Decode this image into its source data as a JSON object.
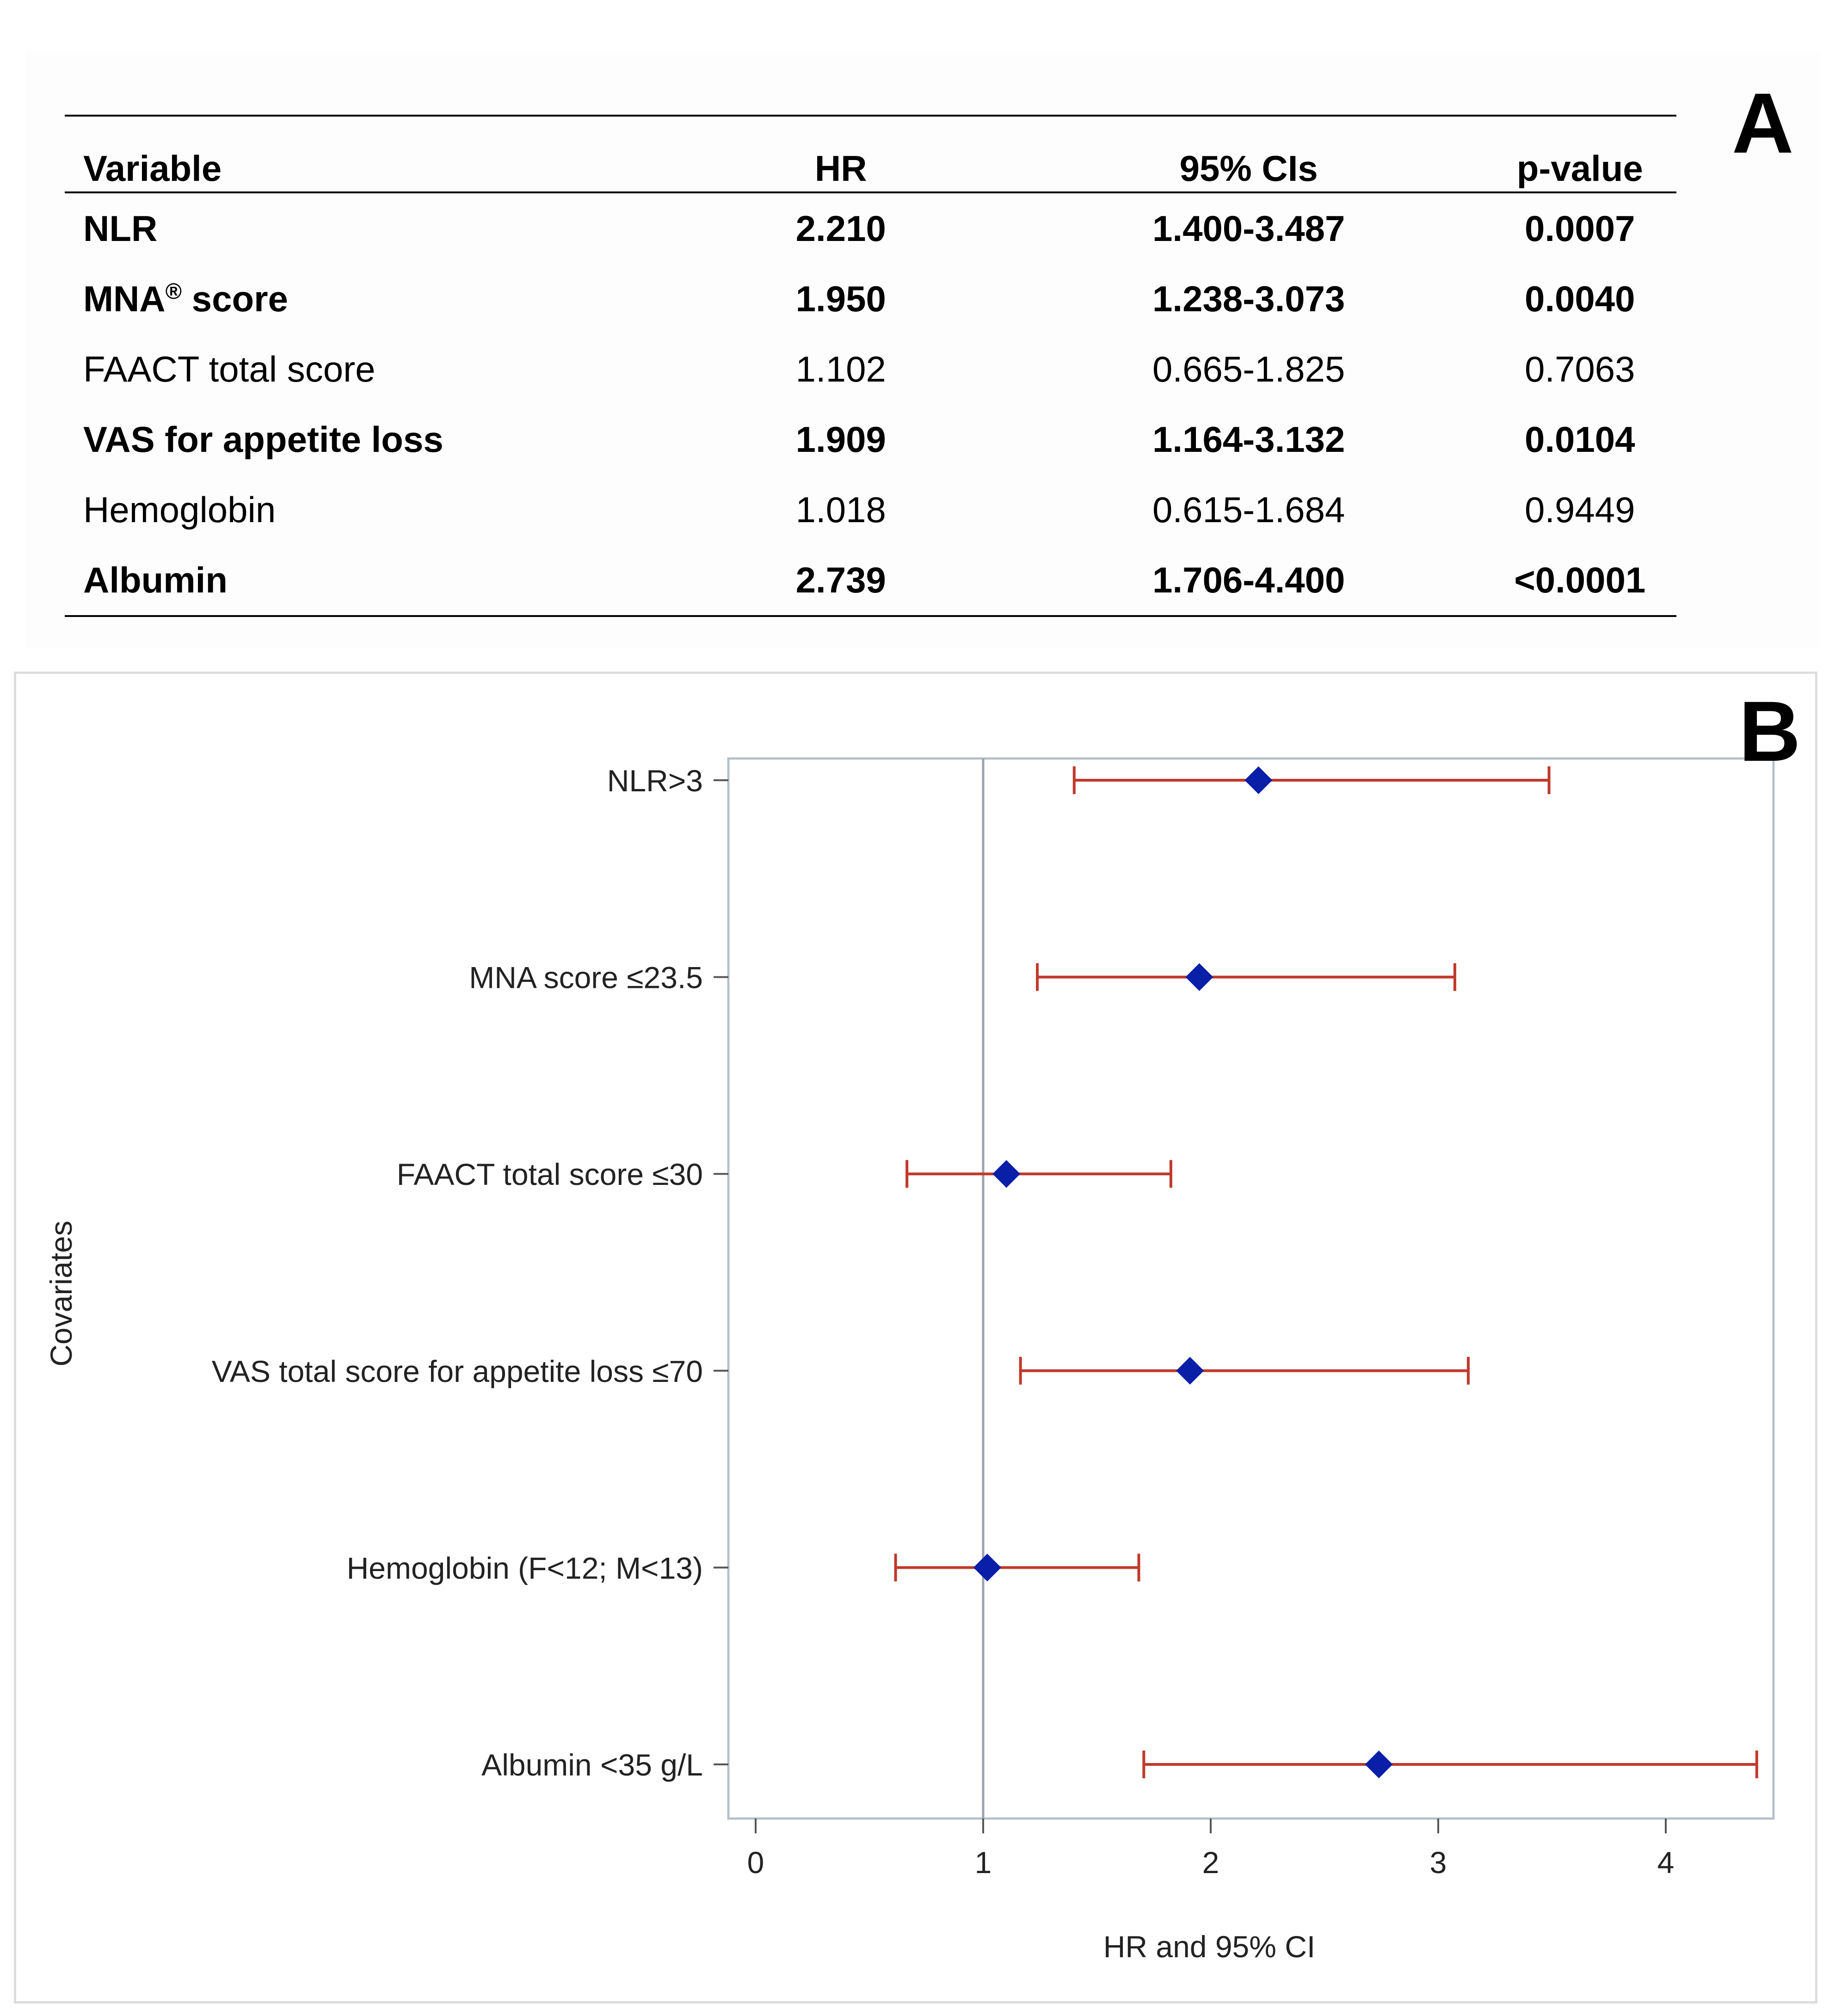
{
  "panels": {
    "a_letter": "A",
    "b_letter": "B"
  },
  "table": {
    "headers": {
      "variable": "Variable",
      "hr": "HR",
      "ci": "95% CIs",
      "p": "p-value"
    },
    "rows": [
      {
        "variable": "NLR",
        "sup": "",
        "suffix": "",
        "hr": "2.210",
        "ci": "1.400-3.487",
        "p": "0.0007",
        "bold": true
      },
      {
        "variable": "MNA",
        "sup": "®",
        "suffix": " score",
        "hr": "1.950",
        "ci": "1.238-3.073",
        "p": "0.0040",
        "bold": true
      },
      {
        "variable": "FAACT total score",
        "sup": "",
        "suffix": "",
        "hr": "1.102",
        "ci": "0.665-1.825",
        "p": "0.7063",
        "bold": false
      },
      {
        "variable": "VAS for appetite loss",
        "sup": "",
        "suffix": "",
        "hr": "1.909",
        "ci": "1.164-3.132",
        "p": "0.0104",
        "bold": true
      },
      {
        "variable": "Hemoglobin",
        "sup": "",
        "suffix": "",
        "hr": "1.018",
        "ci": "0.615-1.684",
        "p": "0.9449",
        "bold": false
      },
      {
        "variable": "Albumin",
        "sup": "",
        "suffix": "",
        "hr": "2.739",
        "ci": "1.706-4.400",
        "p": "<0.0001",
        "bold": true
      }
    ]
  },
  "chart_data": {
    "type": "scatter",
    "subtype": "forest",
    "xlabel": "HR and 95% CI",
    "ylabel": "Covariates",
    "xlim": [
      -0.1,
      4.5
    ],
    "xticks": [
      0,
      1,
      2,
      3,
      4
    ],
    "reference_line": 1,
    "categories": [
      "NLR>3",
      "MNA score ≤23.5",
      "FAACT total score ≤30",
      "VAS total score for appetite loss ≤70",
      "Hemoglobin (F<12; M<13)",
      "Albumin <35 g/L"
    ],
    "hr": [
      2.21,
      1.95,
      1.102,
      1.909,
      1.018,
      2.739
    ],
    "lower": [
      1.4,
      1.238,
      0.665,
      1.164,
      0.615,
      1.706
    ],
    "upper": [
      3.487,
      3.073,
      1.825,
      3.132,
      1.684,
      4.4
    ],
    "colors": {
      "marker": "#0a1fa8",
      "ci": "#c0392b",
      "ref": "#9aa4ad",
      "frame": "#b7c0c8"
    }
  }
}
